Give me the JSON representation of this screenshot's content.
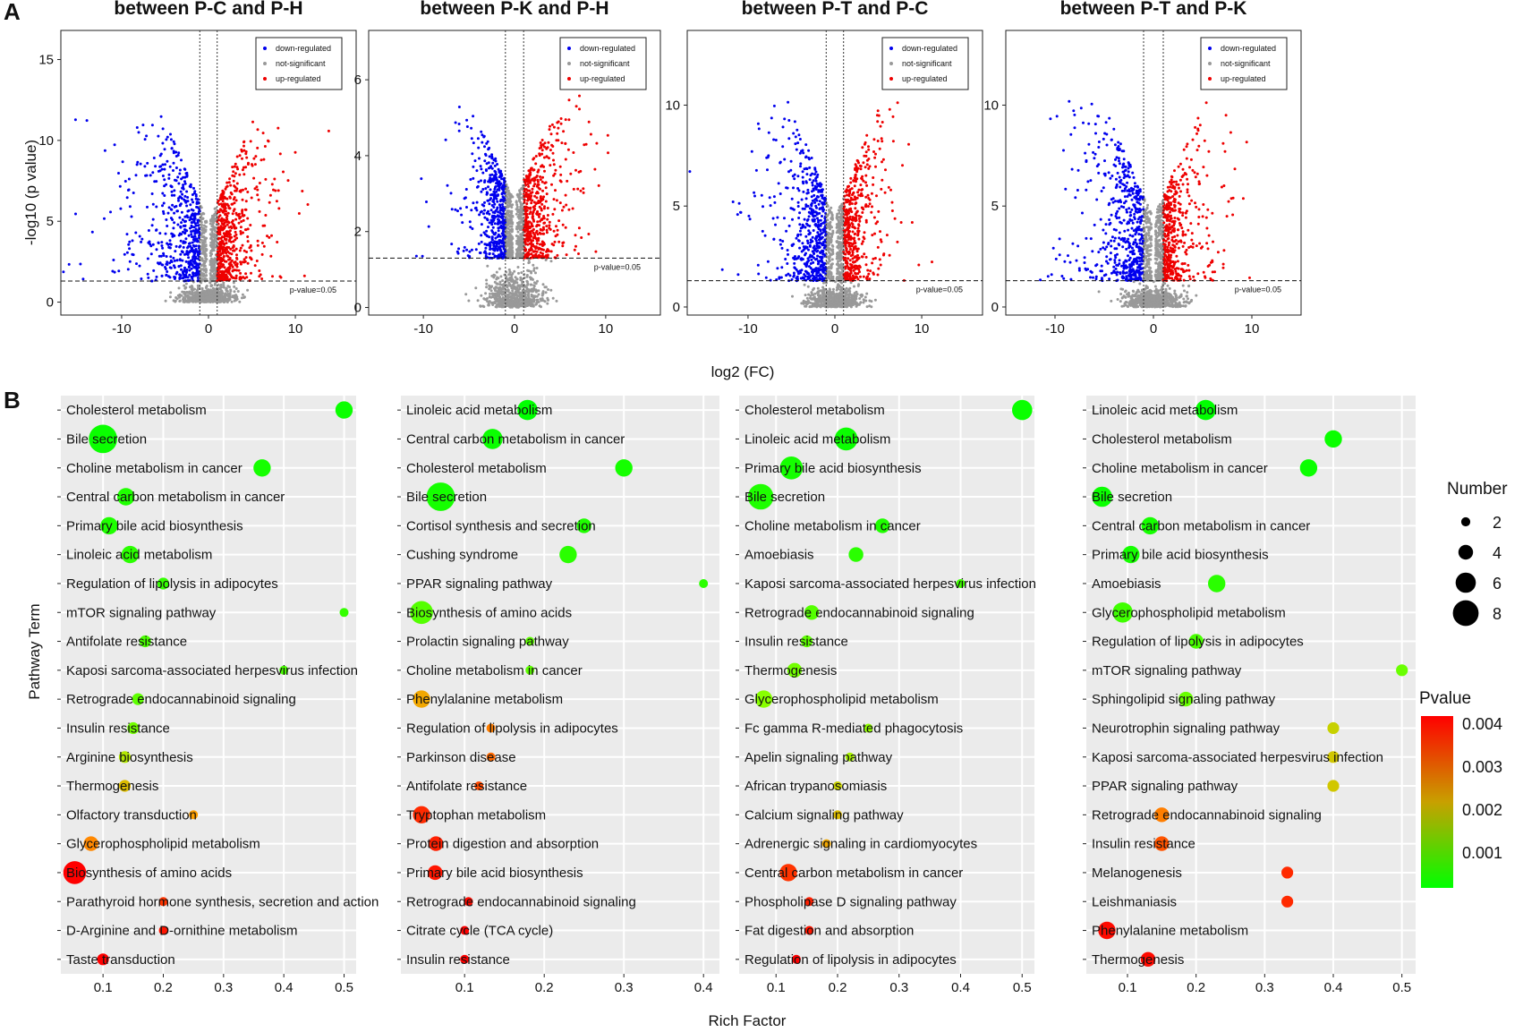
{
  "figure": {
    "panel_a_label": "A",
    "panel_b_label": "B",
    "volcano_xlabel": "log2 (FC)",
    "volcano_ylabel": "-log10 (p value)",
    "bubble_xlabel": "Rich Factor",
    "bubble_ylabel": "Pathway Term",
    "number_legend_title": "Number",
    "pvalue_legend_title": "Pvalue",
    "number_legend_values": [
      "2",
      "4",
      "6",
      "8"
    ],
    "pvalue_legend_values": [
      "0.004",
      "0.003",
      "0.002",
      "0.001"
    ],
    "colors": {
      "down": "#0000ee",
      "up": "#ee0000",
      "ns": "#999999",
      "panel_bg": "#ebebeb",
      "p_high": "#ff0000",
      "p_low": "#00ff00"
    }
  },
  "chart_data": [
    {
      "type": "scatter",
      "kind": "volcano",
      "title": "between P-C and P-H",
      "xlabel": "log2 (FC)",
      "ylabel": "-log10 (p value)",
      "xlim": [
        -17,
        17
      ],
      "ylim": [
        -0.8,
        16.8
      ],
      "xticks": [
        "-10",
        "0",
        "10"
      ],
      "yticks": [
        "0",
        "5",
        "10",
        "15"
      ],
      "legend": [
        "down-regulated",
        "not-significant",
        "up-regulated"
      ],
      "threshold_label": "p-value=0.05",
      "p_threshold": 1.3,
      "fc_threshold": 1,
      "spread_down": 6,
      "spread_up": 4.5,
      "max_y": 11.5,
      "n_points": 1400
    },
    {
      "type": "scatter",
      "kind": "volcano",
      "title": "between P-K and P-H",
      "xlabel": "log2 (FC)",
      "ylabel": "-log10 (p value)",
      "xlim": [
        -16,
        16
      ],
      "ylim": [
        -0.2,
        7.3
      ],
      "xticks": [
        "-10",
        "0",
        "10"
      ],
      "yticks": [
        "0",
        "2",
        "4",
        "6"
      ],
      "legend": [
        "down-regulated",
        "not-significant",
        "up-regulated"
      ],
      "threshold_label": "p-value=0.05",
      "p_threshold": 1.3,
      "fc_threshold": 1,
      "spread_down": 3.5,
      "spread_up": 4,
      "max_y": 5.6,
      "n_points": 1400
    },
    {
      "type": "scatter",
      "kind": "volcano",
      "title": "between P-T and P-C",
      "xlabel": "log2 (FC)",
      "ylabel": "-log10 (p value)",
      "xlim": [
        -17,
        17
      ],
      "ylim": [
        -0.4,
        13.7
      ],
      "xticks": [
        "-10",
        "0",
        "10"
      ],
      "yticks": [
        "0",
        "5",
        "10"
      ],
      "legend": [
        "down-regulated",
        "not-significant",
        "up-regulated"
      ],
      "threshold_label": "p-value=0.05",
      "p_threshold": 1.3,
      "fc_threshold": 1,
      "spread_down": 5,
      "spread_up": 3.5,
      "max_y": 10.2,
      "n_points": 1400
    },
    {
      "type": "scatter",
      "kind": "volcano",
      "title": "between P-T and P-K",
      "xlabel": "log2 (FC)",
      "ylabel": "-log10 (p value)",
      "xlim": [
        -15,
        15
      ],
      "ylim": [
        -0.4,
        13.7
      ],
      "xticks": [
        "-10",
        "0",
        "10"
      ],
      "yticks": [
        "0",
        "5",
        "10"
      ],
      "legend": [
        "down-regulated",
        "not-significant",
        "up-regulated"
      ],
      "threshold_label": "p-value=0.05",
      "p_threshold": 1.3,
      "fc_threshold": 1,
      "spread_down": 5,
      "spread_up": 3.5,
      "max_y": 10.2,
      "n_points": 1400
    },
    {
      "type": "scatter",
      "kind": "bubble",
      "xlabel": "Rich Factor",
      "ylabel": "Pathway Term",
      "xlim": [
        0.03,
        0.52
      ],
      "xticks": [
        0.1,
        0.2,
        0.3,
        0.4,
        0.5
      ],
      "terms": [
        "Cholesterol metabolism",
        "Bile secretion",
        "Choline metabolism in cancer",
        "Central carbon metabolism in cancer",
        "Primary bile acid biosynthesis",
        "Linoleic acid metabolism",
        "Regulation of lipolysis in adipocytes",
        "mTOR signaling pathway",
        "Antifolate resistance",
        "Kaposi sarcoma-associated herpesvirus infection",
        "Retrograde endocannabinoid signaling",
        "Insulin resistance",
        "Arginine biosynthesis",
        "Thermogenesis",
        "Olfactory transduction",
        "Glycerophospholipid metabolism",
        "Biosynthesis of amino acids",
        "Parathyroid hormone synthesis, secretion and action",
        "D-Arginine and D-ornithine metabolism",
        "Taste transduction"
      ],
      "rich": [
        0.5,
        0.1,
        0.364,
        0.138,
        0.11,
        0.145,
        0.2,
        0.5,
        0.17,
        0.4,
        0.158,
        0.15,
        0.136,
        0.136,
        0.25,
        0.08,
        0.053,
        0.2,
        0.2,
        0.1
      ],
      "number": [
        4,
        8,
        4,
        4,
        4,
        4,
        2,
        1,
        2,
        1,
        2,
        2,
        2,
        2,
        1,
        3,
        6,
        1,
        1,
        2
      ],
      "pvalue": [
        0.0002,
        0.0002,
        0.0003,
        0.0004,
        0.0004,
        0.0005,
        0.0006,
        0.0006,
        0.0008,
        0.0008,
        0.001,
        0.0012,
        0.0018,
        0.0022,
        0.0025,
        0.0027,
        0.004,
        0.0035,
        0.0038,
        0.004
      ]
    },
    {
      "type": "scatter",
      "kind": "bubble",
      "xlabel": "Rich Factor",
      "ylabel": "Pathway Term",
      "xlim": [
        0.02,
        0.42
      ],
      "xticks": [
        0.1,
        0.2,
        0.3,
        0.4
      ],
      "terms": [
        "Linoleic acid metabolism",
        "Central carbon metabolism in cancer",
        "Cholesterol metabolism",
        "Bile secretion",
        "Cortisol synthesis and secretion",
        "Cushing syndrome",
        "PPAR signaling pathway",
        "Biosynthesis of amino acids",
        "Prolactin signaling pathway",
        "Choline metabolism in cancer",
        "Phenylalanine metabolism",
        "Regulation of lipolysis in adipocytes",
        "Parkinson disease",
        "Antifolate resistance",
        "Tryptophan metabolism",
        "Protein digestion and absorption",
        "Primary bile acid biosynthesis",
        "Retrograde endocannabinoid signaling",
        "Citrate cycle (TCA cycle)",
        "Insulin resistance"
      ],
      "rich": [
        0.179,
        0.135,
        0.3,
        0.07,
        0.25,
        0.23,
        0.4,
        0.046,
        0.182,
        0.182,
        0.046,
        0.133,
        0.133,
        0.118,
        0.046,
        0.064,
        0.063,
        0.105,
        0.1,
        0.1
      ],
      "number": [
        5,
        5,
        4,
        8,
        3,
        4,
        1,
        6,
        1,
        1,
        4,
        1,
        1,
        1,
        4,
        3,
        3,
        1,
        1,
        1
      ],
      "pvalue": [
        0.0001,
        0.0002,
        0.0003,
        0.0003,
        0.0004,
        0.0005,
        0.0005,
        0.0009,
        0.001,
        0.001,
        0.0024,
        0.0028,
        0.003,
        0.0033,
        0.0036,
        0.0037,
        0.0038,
        0.0039,
        0.004,
        0.004
      ]
    },
    {
      "type": "scatter",
      "kind": "bubble",
      "xlabel": "Rich Factor",
      "ylabel": "Pathway Term",
      "xlim": [
        0.04,
        0.52
      ],
      "xticks": [
        0.1,
        0.2,
        0.3,
        0.4,
        0.5
      ],
      "terms": [
        "Cholesterol metabolism",
        "Linoleic acid metabolism",
        "Primary bile acid biosynthesis",
        "Bile secretion",
        "Choline metabolism in cancer",
        "Amoebiasis",
        "Kaposi sarcoma-associated herpesvirus infection",
        "Retrograde endocannabinoid signaling",
        "Insulin resistance",
        "Thermogenesis",
        "Glycerophospholipid metabolism",
        "Fc gamma R-mediated phagocytosis",
        "Apelin signaling pathway",
        "African trypanosomiasis",
        "Calcium signaling pathway",
        "Adrenergic signaling in cardiomyocytes",
        "Central carbon metabolism in cancer",
        "Phospholipase D signaling pathway",
        "Fat digestion and absorption",
        "Regulation of lipolysis in adipocytes"
      ],
      "rich": [
        0.5,
        0.214,
        0.125,
        0.075,
        0.273,
        0.23,
        0.4,
        0.158,
        0.15,
        0.13,
        0.08,
        0.25,
        0.22,
        0.2,
        0.2,
        0.182,
        0.12,
        0.154,
        0.154,
        0.133
      ],
      "number": [
        5,
        6,
        6,
        7,
        3,
        3,
        1,
        3,
        2,
        3,
        4,
        1,
        1,
        1,
        1,
        1,
        4,
        1,
        1,
        1
      ],
      "pvalue": [
        0.0002,
        0.0002,
        0.0003,
        0.0004,
        0.0004,
        0.0005,
        0.0007,
        0.0009,
        0.001,
        0.0012,
        0.0014,
        0.0015,
        0.0017,
        0.002,
        0.0022,
        0.0024,
        0.0035,
        0.0037,
        0.0038,
        0.004
      ]
    },
    {
      "type": "scatter",
      "kind": "bubble",
      "xlabel": "Rich Factor",
      "ylabel": "Pathway Term",
      "xlim": [
        0.04,
        0.52
      ],
      "xticks": [
        0.1,
        0.2,
        0.3,
        0.4,
        0.5
      ],
      "terms": [
        "Linoleic acid metabolism",
        "Cholesterol metabolism",
        "Choline metabolism in cancer",
        "Bile secretion",
        "Central carbon metabolism in cancer",
        "Primary bile acid biosynthesis",
        "Amoebiasis",
        "Glycerophospholipid metabolism",
        "Regulation of lipolysis in adipocytes",
        "mTOR signaling pathway",
        "Sphingolipid signaling pathway",
        "Neurotrophin signaling pathway",
        "Kaposi sarcoma-associated herpesvirus infection",
        "PPAR signaling pathway",
        "Retrograde endocannabinoid signaling",
        "Insulin resistance",
        "Melanogenesis",
        "Leishmaniasis",
        "Phenylalanine metabolism",
        "Thermogenesis"
      ],
      "rich": [
        0.214,
        0.4,
        0.364,
        0.063,
        0.133,
        0.105,
        0.23,
        0.093,
        0.2,
        0.5,
        0.185,
        0.4,
        0.4,
        0.4,
        0.15,
        0.15,
        0.333,
        0.333,
        0.07,
        0.13
      ],
      "number": [
        5,
        4,
        4,
        5,
        4,
        4,
        4,
        5,
        3,
        2,
        3,
        2,
        2,
        2,
        3,
        3,
        2,
        2,
        4,
        3
      ],
      "pvalue": [
        0.0001,
        0.0002,
        0.0002,
        0.0002,
        0.0003,
        0.0003,
        0.0005,
        0.0007,
        0.0008,
        0.0011,
        0.0011,
        0.002,
        0.0021,
        0.0021,
        0.0028,
        0.0032,
        0.0036,
        0.0036,
        0.0039,
        0.0039
      ]
    }
  ]
}
